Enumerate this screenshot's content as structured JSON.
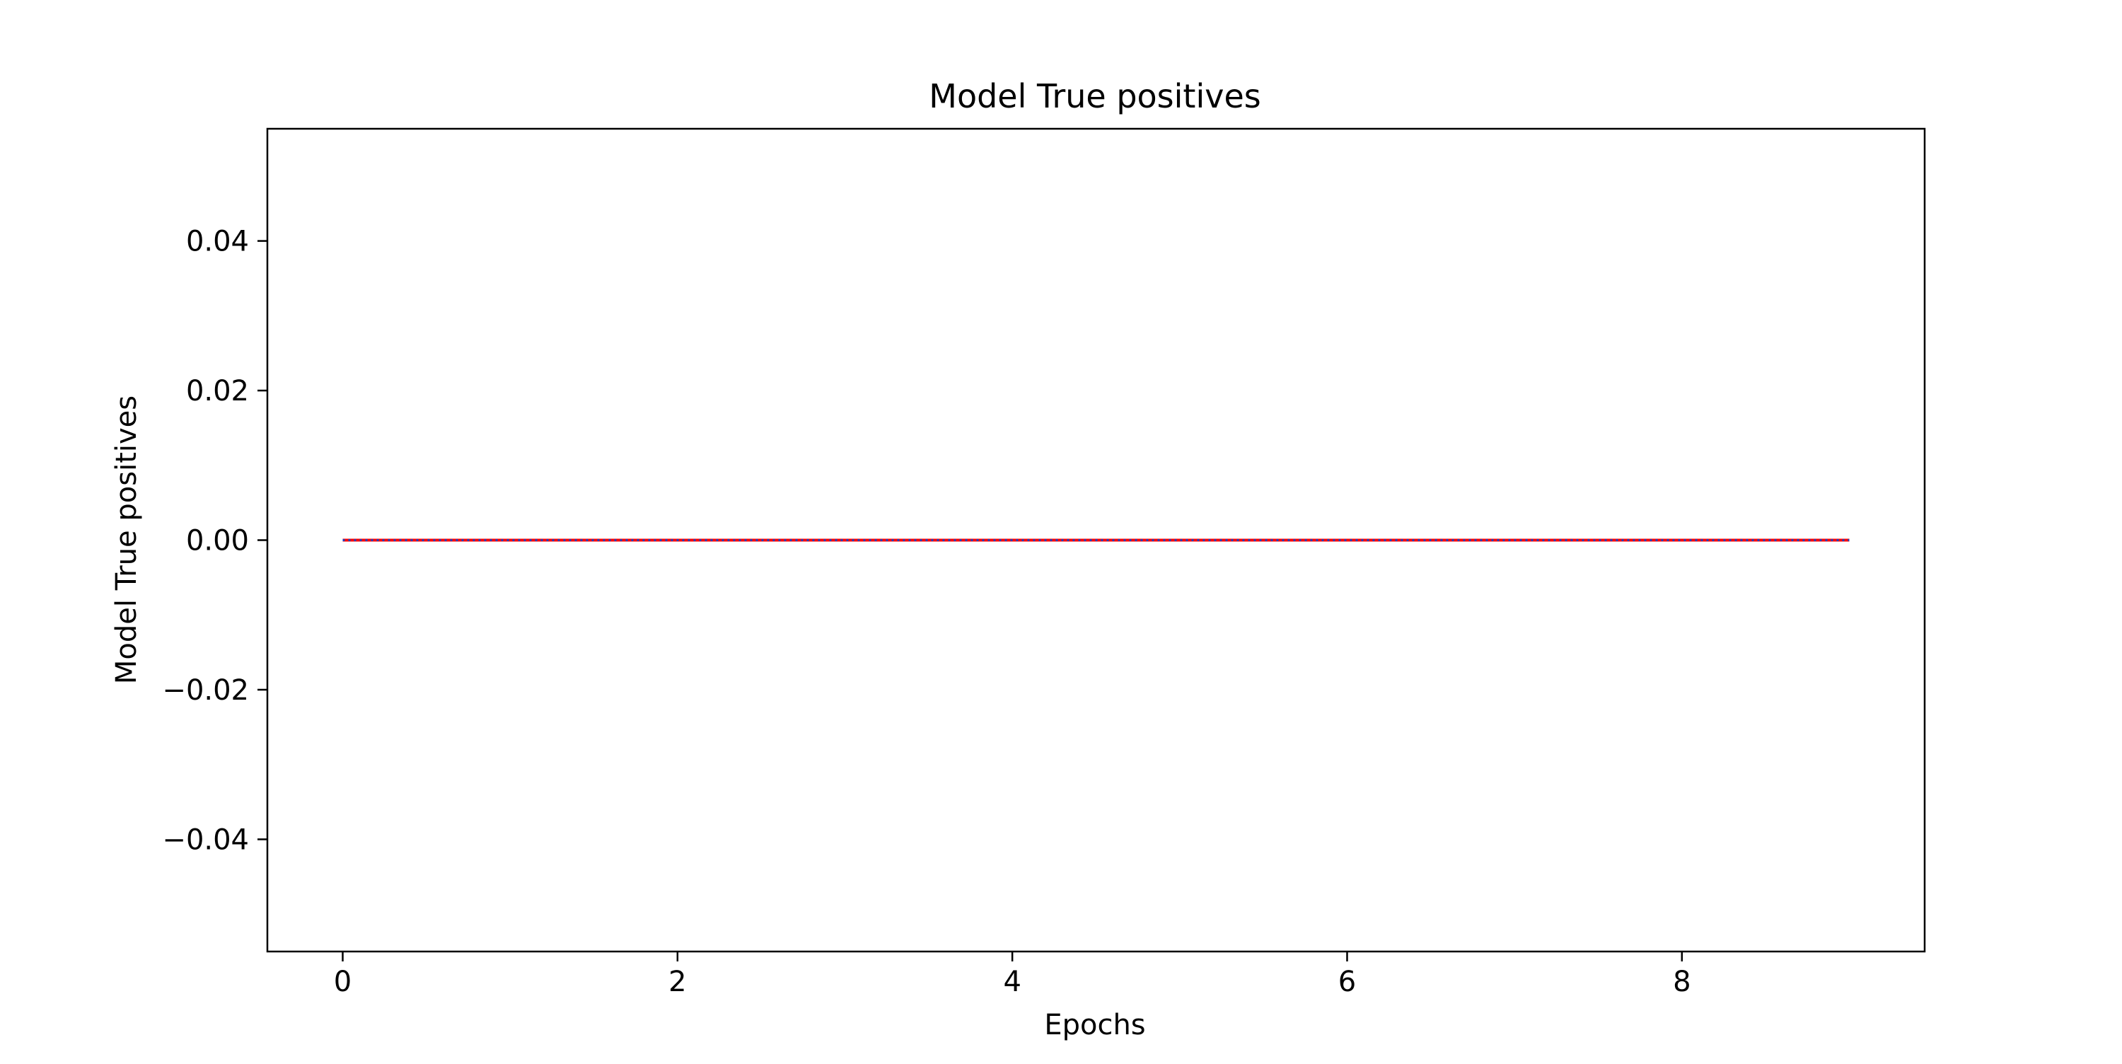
{
  "chart_data": {
    "type": "line",
    "title": "Model True positives",
    "xlabel": "Epochs",
    "ylabel": "Model True positives",
    "x": [
      0,
      1,
      2,
      3,
      4,
      5,
      6,
      7,
      8,
      9
    ],
    "xlim": [
      -0.45,
      9.45
    ],
    "ylim": [
      -0.055,
      0.055
    ],
    "xticks": [
      0,
      2,
      4,
      6,
      8
    ],
    "xtick_labels": [
      "0",
      "2",
      "4",
      "6",
      "8"
    ],
    "yticks": [
      0.04,
      0.02,
      0.0,
      -0.02,
      -0.04
    ],
    "ytick_labels": [
      "0.04",
      "0.02",
      "0.00",
      "−0.02",
      "−0.04"
    ],
    "grid": false,
    "series": [
      {
        "values": [
          0,
          0,
          0,
          0,
          0,
          0,
          0,
          0,
          0,
          0
        ],
        "color": "#ff0000",
        "dash": "solid"
      },
      {
        "values": [
          0,
          0,
          0,
          0,
          0,
          0,
          0,
          0,
          0,
          0
        ],
        "color": "#1f3fbf",
        "dash": "dotted"
      }
    ]
  }
}
